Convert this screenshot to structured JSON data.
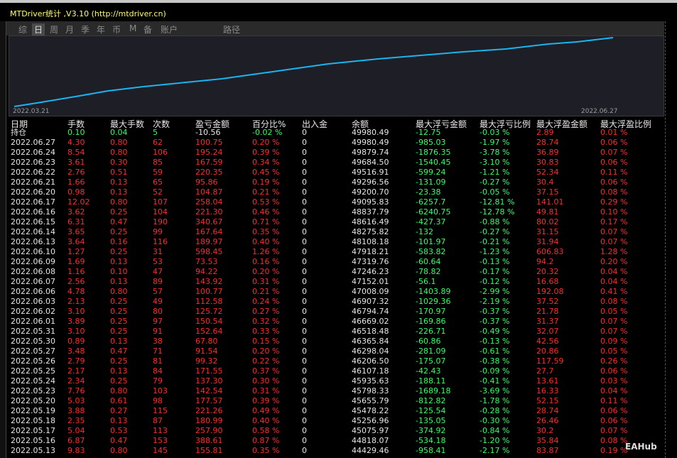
{
  "header": {
    "title": "MTDriver统计 ,V3.10 (http://mtdriver.cn)"
  },
  "tabs": [
    "综",
    "日",
    "周",
    "月",
    "季",
    "年",
    "币",
    "M",
    "备",
    "账户",
    "路径"
  ],
  "chart": {
    "start_label": "2022.03.21",
    "end_label": "2022.06.27"
  },
  "table": {
    "columns": [
      "日期",
      "手数",
      "最大手数",
      "次数",
      "盈亏金额",
      "百分比%",
      "出入金",
      "余额",
      "最大浮亏金额",
      "最大浮亏比例",
      "最大浮盈金额",
      "最大浮盈比例"
    ],
    "rows": [
      [
        "持仓",
        "0.10",
        "0.04",
        "5",
        "-10.56",
        "-0.02 %",
        "0",
        "49980.49",
        "-12.75",
        "-0.03 %",
        "2.89",
        "0.01 %"
      ],
      [
        "2022.06.27",
        "4.30",
        "0.80",
        "62",
        "100.75",
        "0.20 %",
        "0",
        "49980.49",
        "-985.03",
        "-1.97 %",
        "28.74",
        "0.06 %"
      ],
      [
        "2022.06.24",
        "8.54",
        "0.80",
        "106",
        "195.24",
        "0.39 %",
        "0",
        "49879.74",
        "-1876.35",
        "-3.78 %",
        "36.89",
        "0.07 %"
      ],
      [
        "2022.06.23",
        "3.61",
        "0.30",
        "85",
        "167.59",
        "0.34 %",
        "0",
        "49684.50",
        "-1540.45",
        "-3.10 %",
        "30.83",
        "0.06 %"
      ],
      [
        "2022.06.22",
        "2.76",
        "0.51",
        "59",
        "220.35",
        "0.45 %",
        "0",
        "49516.91",
        "-599.24",
        "-1.21 %",
        "52.34",
        "0.11 %"
      ],
      [
        "2022.06.21",
        "1.66",
        "0.13",
        "65",
        "95.86",
        "0.19 %",
        "0",
        "49296.56",
        "-131.09",
        "-0.27 %",
        "30.4",
        "0.06 %"
      ],
      [
        "2022.06.20",
        "0.98",
        "0.13",
        "52",
        "104.87",
        "0.21 %",
        "0",
        "49200.70",
        "-23.38",
        "-0.05 %",
        "37.15",
        "0.08 %"
      ],
      [
        "2022.06.17",
        "12.02",
        "0.80",
        "107",
        "258.04",
        "0.53 %",
        "0",
        "49095.83",
        "-6257.7",
        "-12.81 %",
        "141.01",
        "0.29 %"
      ],
      [
        "2022.06.16",
        "3.62",
        "0.25",
        "104",
        "221.30",
        "0.46 %",
        "0",
        "48837.79",
        "-6240.75",
        "-12.78 %",
        "49.81",
        "0.10 %"
      ],
      [
        "2022.06.15",
        "6.31",
        "0.47",
        "190",
        "340.67",
        "0.71 %",
        "0",
        "48616.49",
        "-427.37",
        "-0.88 %",
        "80.02",
        "0.17 %"
      ],
      [
        "2022.06.14",
        "3.65",
        "0.25",
        "99",
        "167.64",
        "0.35 %",
        "0",
        "48275.82",
        "-132",
        "-0.27 %",
        "31.15",
        "0.07 %"
      ],
      [
        "2022.06.13",
        "3.64",
        "0.16",
        "116",
        "189.97",
        "0.40 %",
        "0",
        "48108.18",
        "-101.97",
        "-0.21 %",
        "31.94",
        "0.07 %"
      ],
      [
        "2022.06.10",
        "1.27",
        "0.25",
        "31",
        "598.45",
        "1.26 %",
        "0",
        "47918.21",
        "-583.82",
        "-1.23 %",
        "606.83",
        "1.28 %"
      ],
      [
        "2022.06.09",
        "1.69",
        "0.13",
        "53",
        "73.53",
        "0.16 %",
        "0",
        "47319.76",
        "-60.64",
        "-0.13 %",
        "94.2",
        "0.20 %"
      ],
      [
        "2022.06.08",
        "1.16",
        "0.10",
        "47",
        "94.22",
        "0.20 %",
        "0",
        "47246.23",
        "-78.82",
        "-0.17 %",
        "20.32",
        "0.04 %"
      ],
      [
        "2022.06.07",
        "2.56",
        "0.13",
        "89",
        "143.92",
        "0.31 %",
        "0",
        "47152.01",
        "-56.1",
        "-0.12 %",
        "16.68",
        "0.04 %"
      ],
      [
        "2022.06.06",
        "4.78",
        "0.80",
        "57",
        "100.77",
        "0.21 %",
        "0",
        "47008.09",
        "-1403.89",
        "-2.99 %",
        "192.08",
        "0.41 %"
      ],
      [
        "2022.06.03",
        "2.13",
        "0.25",
        "49",
        "112.58",
        "0.24 %",
        "0",
        "46907.32",
        "-1029.36",
        "-2.19 %",
        "37.52",
        "0.08 %"
      ],
      [
        "2022.06.02",
        "3.10",
        "0.25",
        "80",
        "125.72",
        "0.27 %",
        "0",
        "46794.74",
        "-170.97",
        "-0.37 %",
        "21.78",
        "0.05 %"
      ],
      [
        "2022.06.01",
        "3.89",
        "0.25",
        "97",
        "150.54",
        "0.32 %",
        "0",
        "46669.02",
        "-169.86",
        "-0.37 %",
        "31.37",
        "0.07 %"
      ],
      [
        "2022.05.31",
        "3.10",
        "0.25",
        "91",
        "152.64",
        "0.33 %",
        "0",
        "46518.48",
        "-226.71",
        "-0.49 %",
        "32.07",
        "0.07 %"
      ],
      [
        "2022.05.30",
        "0.89",
        "0.13",
        "38",
        "67.80",
        "0.15 %",
        "0",
        "46365.84",
        "-60.86",
        "-0.13 %",
        "42.56",
        "0.09 %"
      ],
      [
        "2022.05.27",
        "3.48",
        "0.47",
        "71",
        "91.54",
        "0.20 %",
        "0",
        "46298.04",
        "-281.09",
        "-0.61 %",
        "20.86",
        "0.05 %"
      ],
      [
        "2022.05.26",
        "2.79",
        "0.25",
        "81",
        "99.32",
        "0.22 %",
        "0",
        "46206.50",
        "-175.07",
        "-0.38 %",
        "117.59",
        "0.26 %"
      ],
      [
        "2022.05.25",
        "2.17",
        "0.13",
        "84",
        "171.55",
        "0.37 %",
        "0",
        "46107.18",
        "-42.43",
        "-0.09 %",
        "27.7",
        "0.06 %"
      ],
      [
        "2022.05.24",
        "2.34",
        "0.25",
        "79",
        "137.30",
        "0.30 %",
        "0",
        "45935.63",
        "-188.11",
        "-0.41 %",
        "13.61",
        "0.03 %"
      ],
      [
        "2022.05.23",
        "7.76",
        "0.80",
        "103",
        "142.54",
        "0.31 %",
        "0",
        "45798.33",
        "-1689.18",
        "-3.69 %",
        "16.33",
        "0.04 %"
      ],
      [
        "2022.05.20",
        "5.03",
        "0.61",
        "98",
        "177.57",
        "0.39 %",
        "0",
        "45655.79",
        "-812.82",
        "-1.78 %",
        "52.15",
        "0.11 %"
      ],
      [
        "2022.05.19",
        "3.88",
        "0.27",
        "115",
        "221.26",
        "0.49 %",
        "0",
        "45478.22",
        "-125.54",
        "-0.28 %",
        "28.74",
        "0.06 %"
      ],
      [
        "2022.05.18",
        "2.35",
        "0.13",
        "87",
        "180.99",
        "0.40 %",
        "0",
        "45256.96",
        "-135.05",
        "-0.30 %",
        "26.46",
        "0.06 %"
      ],
      [
        "2022.05.17",
        "5.04",
        "0.53",
        "113",
        "257.90",
        "0.58 %",
        "0",
        "45075.97",
        "-374.92",
        "-0.84 %",
        "30.2",
        "0.07 %"
      ],
      [
        "2022.05.16",
        "6.87",
        "0.47",
        "153",
        "388.61",
        "0.87 %",
        "0",
        "44818.07",
        "-534.18",
        "-1.20 %",
        "35.84",
        "0.08 %"
      ],
      [
        "2022.05.13",
        "9.83",
        "0.80",
        "145",
        "155.81",
        "0.35 %",
        "0",
        "44429.46",
        "-958.41",
        "-2.17 %",
        "83.87",
        "0.19 %"
      ]
    ]
  },
  "watermark": "EAHub"
}
